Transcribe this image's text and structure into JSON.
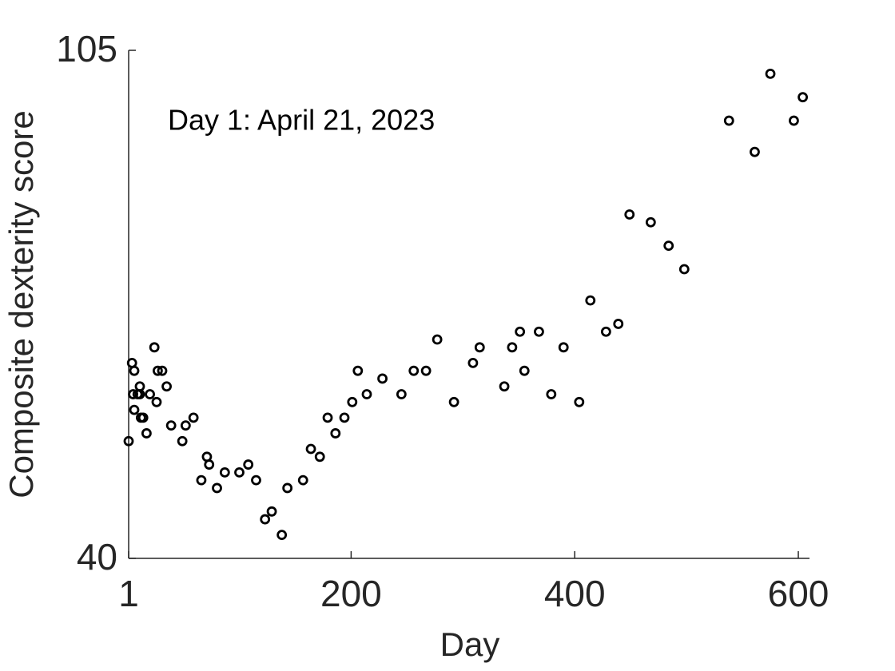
{
  "chart_data": {
    "type": "scatter",
    "annotation": "Day 1: April 21, 2023",
    "x_label": "Day",
    "y_label": "Composite dexterity score",
    "x": [
      1,
      4,
      5,
      6,
      6,
      9,
      11,
      11,
      12,
      14,
      17,
      20,
      24,
      26,
      27,
      31,
      35,
      39,
      49,
      52,
      59,
      66,
      71,
      73,
      80,
      87,
      100,
      108,
      115,
      123,
      129,
      138,
      143,
      157,
      164,
      172,
      179,
      186,
      194,
      201,
      206,
      214,
      228,
      245,
      256,
      267,
      277,
      292,
      309,
      315,
      337,
      344,
      351,
      355,
      368,
      379,
      390,
      404,
      414,
      428,
      439,
      449,
      468,
      484,
      498,
      538,
      561,
      575,
      596,
      604
    ],
    "values": [
      55,
      65,
      61,
      64,
      59,
      61,
      62,
      61,
      58,
      58,
      56,
      61,
      67,
      60,
      64,
      64,
      62,
      57,
      55,
      57,
      58,
      50,
      53,
      52,
      49,
      51,
      51,
      52,
      50,
      45,
      46,
      43,
      49,
      50,
      54,
      53,
      58,
      56,
      58,
      60,
      64,
      61,
      63,
      61,
      64,
      64,
      68,
      60,
      65,
      67,
      62,
      67,
      69,
      64,
      69,
      61,
      67,
      60,
      73,
      69,
      70,
      84,
      83,
      80,
      77,
      96,
      92,
      102,
      96,
      99
    ],
    "color": "#000000",
    "xlim": [
      1,
      610
    ],
    "ylim": [
      40,
      105
    ],
    "xticks": [
      1,
      200,
      400,
      600
    ],
    "yticks": [
      40,
      105
    ],
    "grid": false
  }
}
